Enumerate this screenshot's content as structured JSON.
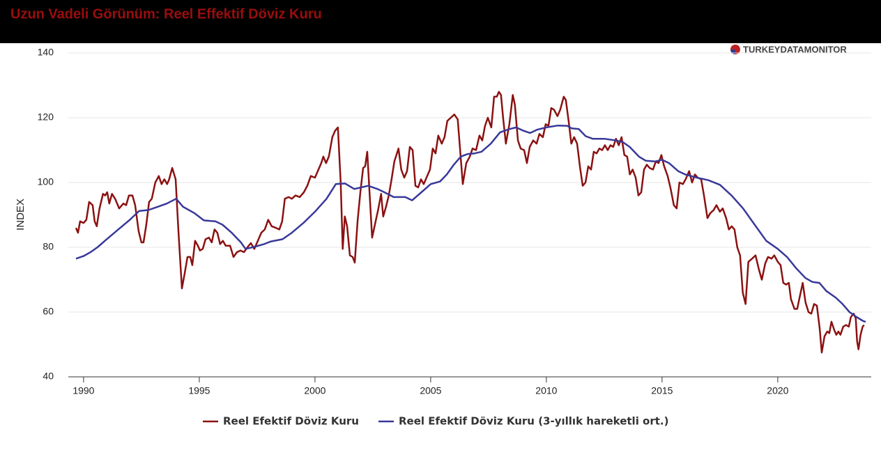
{
  "chart_data": {
    "type": "line",
    "title": "Uzun Vadeli Görünüm: Reel Effektif Döviz Kuru",
    "logo": "TURKEYDATAMONITOR",
    "y_label": "INDEX",
    "xlim": [
      1989.34,
      2024.04
    ],
    "xticks": [
      1990,
      1995,
      2000,
      2005,
      2010,
      2015,
      2020
    ],
    "ylim": [
      40,
      140
    ],
    "yticks": [
      40,
      60,
      80,
      100,
      120,
      140
    ],
    "grid": true,
    "series": [
      {
        "name": "Reel Efektif Döviz Kuru",
        "color": "#8b1111",
        "x": [
          1989.67,
          1989.76,
          1989.85,
          1990.0,
          1990.12,
          1990.24,
          1990.39,
          1990.48,
          1990.57,
          1990.69,
          1990.84,
          1990.93,
          1991.02,
          1991.11,
          1991.23,
          1991.36,
          1991.54,
          1991.72,
          1991.84,
          1991.96,
          1992.11,
          1992.23,
          1992.38,
          1992.5,
          1992.59,
          1992.71,
          1992.83,
          1992.95,
          1993.1,
          1993.25,
          1993.37,
          1993.49,
          1993.61,
          1993.7,
          1993.83,
          1993.98,
          1994.1,
          1994.25,
          1994.37,
          1994.49,
          1994.61,
          1994.7,
          1994.82,
          1994.94,
          1995.03,
          1995.15,
          1995.27,
          1995.42,
          1995.54,
          1995.66,
          1995.78,
          1995.9,
          1996.02,
          1996.14,
          1996.33,
          1996.48,
          1996.63,
          1996.78,
          1996.93,
          1997.08,
          1997.23,
          1997.38,
          1997.53,
          1997.68,
          1997.83,
          1997.98,
          1998.13,
          1998.31,
          1998.46,
          1998.58,
          1998.7,
          1998.86,
          1999.0,
          1999.16,
          1999.34,
          1999.52,
          1999.67,
          1999.82,
          2000.0,
          2000.15,
          2000.27,
          2000.36,
          2000.48,
          2000.6,
          2000.75,
          2000.87,
          2000.99,
          2001.11,
          2001.2,
          2001.29,
          2001.39,
          2001.51,
          2001.63,
          2001.72,
          2001.84,
          2001.96,
          2002.08,
          2002.17,
          2002.26,
          2002.35,
          2002.47,
          2002.59,
          2002.74,
          2002.86,
          2002.95,
          2003.07,
          2003.19,
          2003.31,
          2003.43,
          2003.61,
          2003.73,
          2003.86,
          2003.98,
          2004.1,
          2004.22,
          2004.34,
          2004.46,
          2004.58,
          2004.7,
          2004.85,
          2004.97,
          2005.09,
          2005.21,
          2005.33,
          2005.48,
          2005.6,
          2005.72,
          2005.87,
          2006.02,
          2006.17,
          2006.39,
          2006.54,
          2006.69,
          2006.81,
          2006.96,
          2007.11,
          2007.23,
          2007.35,
          2007.47,
          2007.62,
          2007.74,
          2007.86,
          2007.95,
          2008.04,
          2008.13,
          2008.25,
          2008.4,
          2008.55,
          2008.64,
          2008.77,
          2008.89,
          2009.04,
          2009.16,
          2009.28,
          2009.43,
          2009.58,
          2009.7,
          2009.85,
          2009.97,
          2010.09,
          2010.21,
          2010.33,
          2010.48,
          2010.6,
          2010.75,
          2010.84,
          2010.96,
          2011.08,
          2011.2,
          2011.33,
          2011.45,
          2011.57,
          2011.69,
          2011.81,
          2011.93,
          2012.05,
          2012.17,
          2012.29,
          2012.41,
          2012.53,
          2012.65,
          2012.77,
          2012.89,
          2013.01,
          2013.13,
          2013.25,
          2013.37,
          2013.49,
          2013.61,
          2013.73,
          2013.86,
          2013.98,
          2014.1,
          2014.22,
          2014.34,
          2014.46,
          2014.61,
          2014.73,
          2014.85,
          2014.97,
          2015.09,
          2015.24,
          2015.36,
          2015.51,
          2015.63,
          2015.75,
          2015.9,
          2016.02,
          2016.17,
          2016.3,
          2016.42,
          2016.54,
          2016.69,
          2016.81,
          2016.96,
          2017.08,
          2017.23,
          2017.35,
          2017.5,
          2017.62,
          2017.77,
          2017.89,
          2018.01,
          2018.13,
          2018.25,
          2018.37,
          2018.49,
          2018.61,
          2018.73,
          2018.89,
          2019.04,
          2019.19,
          2019.31,
          2019.46,
          2019.58,
          2019.73,
          2019.85,
          2020.0,
          2020.12,
          2020.24,
          2020.36,
          2020.48,
          2020.57,
          2020.72,
          2020.84,
          2020.96,
          2021.08,
          2021.2,
          2021.33,
          2021.45,
          2021.57,
          2021.69,
          2021.81,
          2021.9,
          2022.02,
          2022.14,
          2022.23,
          2022.32,
          2022.44,
          2022.53,
          2022.62,
          2022.71,
          2022.83,
          2022.95,
          2023.07,
          2023.16,
          2023.28,
          2023.37,
          2023.43,
          2023.49,
          2023.58,
          2023.67,
          2023.73
        ],
        "values": [
          86,
          84.5,
          88,
          87.5,
          88.5,
          94,
          93,
          88,
          86.5,
          92,
          96.5,
          96,
          97,
          93.5,
          96.5,
          95,
          92,
          93.5,
          93,
          96,
          96,
          93,
          85,
          81.5,
          81.5,
          87,
          94,
          95,
          100,
          102,
          99.5,
          101,
          99.5,
          101,
          104.5,
          101,
          85,
          67.3,
          72,
          77,
          77,
          74.5,
          82,
          80.5,
          79,
          79.5,
          82.5,
          83,
          81.5,
          85.5,
          84.5,
          81,
          82,
          80.5,
          80.5,
          77,
          78.5,
          79,
          78.5,
          80,
          81.3,
          79.5,
          82,
          84.5,
          85.5,
          88.5,
          86.5,
          86,
          85.5,
          88,
          95,
          95.5,
          95,
          96,
          95.5,
          97,
          99,
          102,
          101.5,
          104,
          106,
          108,
          106,
          108,
          114,
          116,
          117,
          100,
          79.5,
          89.5,
          86.5,
          77.5,
          77,
          75.3,
          88,
          97,
          104.5,
          105,
          109.5,
          98,
          83,
          87,
          92,
          96.5,
          89.5,
          92.5,
          96,
          101,
          106.5,
          110.5,
          104,
          101.5,
          103.5,
          111,
          110,
          99,
          98.5,
          101,
          99.5,
          102,
          104,
          110.5,
          109,
          114.5,
          112,
          114,
          119,
          120,
          121,
          119.5,
          99.5,
          106,
          108,
          110.5,
          110,
          114.5,
          113,
          117.5,
          120,
          117,
          126.5,
          126.5,
          128,
          127,
          120,
          112,
          118,
          127,
          124,
          113,
          110.5,
          110,
          106,
          111,
          113,
          112,
          115,
          114,
          118,
          117.5,
          123,
          122.5,
          120.5,
          122.5,
          126.5,
          125.5,
          119,
          112,
          114,
          112,
          105,
          99,
          100,
          105,
          104,
          109.5,
          109,
          110.5,
          110,
          111.5,
          110,
          111.5,
          111,
          113.5,
          111.5,
          114,
          108.5,
          108,
          102.5,
          104,
          101.5,
          96,
          97,
          104,
          105.5,
          104.5,
          104,
          106.5,
          106,
          108.5,
          105,
          102,
          98.5,
          93,
          92,
          100,
          99.5,
          101,
          103.5,
          100,
          102.5,
          101.5,
          101,
          96,
          89,
          90.5,
          91.5,
          93,
          91,
          92,
          89,
          85.5,
          86.5,
          85.5,
          80,
          77.5,
          66,
          62.5,
          75.5,
          76.5,
          77.5,
          73,
          70,
          75,
          77,
          76.5,
          77.5,
          75.5,
          74.5,
          69,
          68.5,
          69,
          64,
          61,
          61,
          65,
          69,
          63,
          60,
          59.5,
          62.5,
          62,
          55,
          47.5,
          52.5,
          54,
          53.5,
          57,
          54.5,
          53,
          54,
          53,
          55.5,
          56,
          55.5,
          58.5,
          59.5,
          58,
          51,
          48.5,
          53,
          55.5,
          56
        ]
      },
      {
        "name": "Reel Efektif Döviz Kuru (3-yıllık hareketli ort.)",
        "color": "#38389a",
        "x": [
          1989.67,
          1990.0,
          1990.3,
          1990.6,
          1991.0,
          1991.5,
          1992.0,
          1992.4,
          1992.8,
          1993.2,
          1993.6,
          1994.0,
          1994.3,
          1994.8,
          1995.2,
          1995.7,
          1996.0,
          1996.4,
          1996.8,
          1997.0,
          1997.3,
          1997.8,
          1998.1,
          1998.6,
          1999.0,
          1999.5,
          2000.0,
          2000.5,
          2000.9,
          2001.3,
          2001.7,
          2002.0,
          2002.3,
          2002.7,
          2003.0,
          2003.4,
          2003.9,
          2004.2,
          2004.6,
          2005.0,
          2005.4,
          2005.7,
          2006.0,
          2006.3,
          2006.6,
          2006.9,
          2007.2,
          2007.6,
          2008.0,
          2008.4,
          2008.7,
          2009.0,
          2009.3,
          2009.6,
          2010.0,
          2010.5,
          2010.9,
          2011.1,
          2011.4,
          2011.7,
          2012.0,
          2012.5,
          2013.0,
          2013.3,
          2013.6,
          2014.0,
          2014.3,
          2014.7,
          2015.0,
          2015.3,
          2015.7,
          2016.0,
          2016.5,
          2017.0,
          2017.5,
          2018.0,
          2018.5,
          2019.0,
          2019.5,
          2020.0,
          2020.4,
          2020.8,
          2021.2,
          2021.5,
          2021.8,
          2022.1,
          2022.5,
          2022.8,
          2023.1,
          2023.4,
          2023.7,
          2023.8
        ],
        "values": [
          76.5,
          77.3,
          78.5,
          80,
          82.5,
          85.5,
          88.5,
          91.2,
          91.5,
          92.5,
          93.5,
          95,
          92.5,
          90.5,
          88.3,
          88,
          87,
          84.5,
          81.5,
          79.5,
          80,
          81,
          81.8,
          82.5,
          84.5,
          87.5,
          91,
          95,
          99.5,
          99.7,
          98,
          98.5,
          99,
          98,
          97,
          95.5,
          95.5,
          94.5,
          97,
          99.5,
          100.3,
          102.5,
          105.5,
          108,
          108.8,
          109,
          109.5,
          112,
          115.5,
          116.5,
          117,
          116,
          115.3,
          116.3,
          117,
          117.6,
          117.5,
          116.7,
          116.5,
          114.3,
          113.5,
          113.5,
          113,
          112.5,
          111,
          108,
          106.7,
          106.5,
          107,
          106,
          103.5,
          102.5,
          101.5,
          100.7,
          99.3,
          96,
          92,
          87,
          82,
          79.5,
          77,
          73.5,
          70.5,
          69.3,
          69,
          66.5,
          64.5,
          62.5,
          60,
          58.5,
          57.2,
          57
        ]
      }
    ]
  }
}
